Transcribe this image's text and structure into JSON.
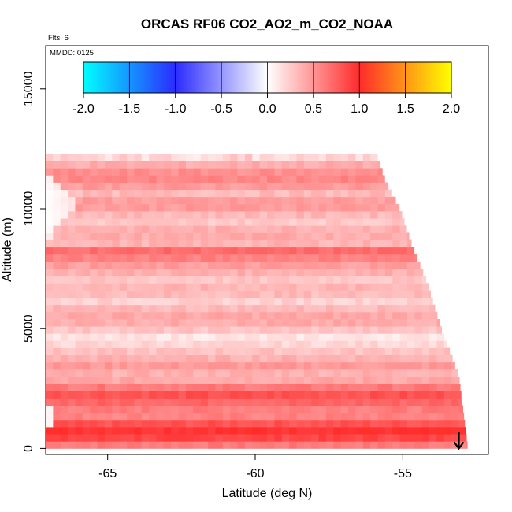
{
  "chart_data": {
    "type": "heatmap",
    "title": "ORCAS RF06 CO2_AO2_m_CO2_NOAA",
    "flights_label": "Flts: 6",
    "date_label": "MMDD: 0125",
    "xlabel": "Latitude (deg N)",
    "ylabel": "Altitude (m)",
    "xlim": [
      -67.1,
      -52.1
    ],
    "ylim": [
      -250,
      16800
    ],
    "xticks": [
      -65,
      -60,
      -55
    ],
    "xtick_labels": [
      "-65",
      "-60",
      "-55"
    ],
    "yticks": [
      0,
      5000,
      10000,
      15000
    ],
    "ytick_labels": [
      "0",
      "5000",
      "10000",
      "15000"
    ],
    "colorbar": {
      "range": [
        -2.0,
        2.0
      ],
      "ticks": [
        -2.0,
        -1.5,
        -1.0,
        -0.5,
        0.0,
        0.5,
        1.0,
        1.5,
        2.0
      ],
      "tick_labels": [
        "-2.0",
        "-1.5",
        "-1.0",
        "-0.5",
        "0.0",
        "0.5",
        "1.0",
        "1.5",
        "2.0"
      ],
      "colors": [
        "#00ffff",
        "#2b2bff",
        "#ffffff",
        "#ff2b2b",
        "#ffff00"
      ],
      "color_stops": [
        -2.0,
        -1.0,
        0.0,
        1.0,
        2.0
      ]
    },
    "curtain": {
      "lat_start": -67.1,
      "lat_step": 0.25,
      "alt_start": 0,
      "alt_step": 300,
      "top_altitude": 12300,
      "right_edge": [
        {
          "alt": 0,
          "lat": -52.8
        },
        {
          "alt": 3000,
          "lat": -53.1
        },
        {
          "alt": 5000,
          "lat": -53.7
        },
        {
          "alt": 7000,
          "lat": -54.2
        },
        {
          "alt": 8500,
          "lat": -54.7
        },
        {
          "alt": 10000,
          "lat": -55.1
        },
        {
          "alt": 11200,
          "lat": -55.6
        },
        {
          "alt": 12300,
          "lat": -55.9
        }
      ],
      "altitude_band_values": [
        {
          "alt": 0,
          "value": 0.45
        },
        {
          "alt": 300,
          "value": 0.8
        },
        {
          "alt": 700,
          "value": 1.0
        },
        {
          "alt": 1000,
          "value": 0.85
        },
        {
          "alt": 1400,
          "value": 0.55
        },
        {
          "alt": 1800,
          "value": 0.65
        },
        {
          "alt": 2200,
          "value": 0.85
        },
        {
          "alt": 2600,
          "value": 0.6
        },
        {
          "alt": 3000,
          "value": 0.3
        },
        {
          "alt": 3400,
          "value": 0.5
        },
        {
          "alt": 3800,
          "value": 0.35
        },
        {
          "alt": 4200,
          "value": 0.25
        },
        {
          "alt": 4600,
          "value": 0.1
        },
        {
          "alt": 5000,
          "value": 0.3
        },
        {
          "alt": 5400,
          "value": 0.45
        },
        {
          "alt": 5800,
          "value": 0.35
        },
        {
          "alt": 6200,
          "value": 0.2
        },
        {
          "alt": 6600,
          "value": 0.4
        },
        {
          "alt": 7000,
          "value": 0.25
        },
        {
          "alt": 7400,
          "value": 0.4
        },
        {
          "alt": 7800,
          "value": 0.5
        },
        {
          "alt": 8200,
          "value": 0.75
        },
        {
          "alt": 8600,
          "value": 0.3
        },
        {
          "alt": 9000,
          "value": 0.45
        },
        {
          "alt": 9400,
          "value": 0.25
        },
        {
          "alt": 9800,
          "value": 0.35
        },
        {
          "alt": 10200,
          "value": 0.55
        },
        {
          "alt": 10600,
          "value": 0.3
        },
        {
          "alt": 11000,
          "value": 0.5
        },
        {
          "alt": 11400,
          "value": 0.6
        },
        {
          "alt": 11800,
          "value": 0.4
        },
        {
          "alt": 12200,
          "value": 0.3
        }
      ],
      "white_wedge": {
        "lat_min": -67.1,
        "lat_max": -66.0,
        "alt_min": 8500,
        "alt_max": 11500
      },
      "low_gap_alt": [
        700,
        1600
      ],
      "low_gap_lat_max": -66.8
    },
    "markers": [
      {
        "label": "arrow",
        "lat": -53.1,
        "alt_from": 700,
        "alt_to": 0
      }
    ]
  }
}
